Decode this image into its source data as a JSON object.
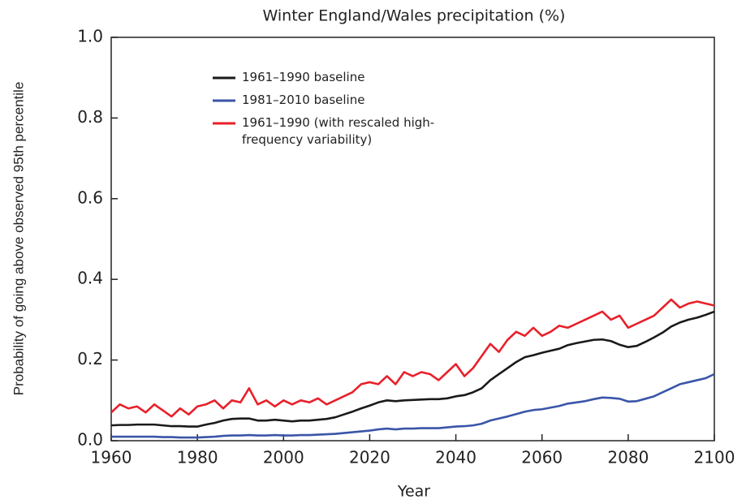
{
  "chart_data": {
    "type": "line",
    "title": "Winter England/Wales precipitation (%)",
    "xlabel": "Year",
    "ylabel": "Probability of going above observed 95th percentile",
    "x": [
      1960,
      1962,
      1964,
      1966,
      1968,
      1970,
      1972,
      1974,
      1976,
      1978,
      1980,
      1982,
      1984,
      1986,
      1988,
      1990,
      1992,
      1994,
      1996,
      1998,
      2000,
      2002,
      2004,
      2006,
      2008,
      2010,
      2012,
      2014,
      2016,
      2018,
      2020,
      2022,
      2024,
      2026,
      2028,
      2030,
      2032,
      2034,
      2036,
      2038,
      2040,
      2042,
      2044,
      2046,
      2048,
      2050,
      2052,
      2054,
      2056,
      2058,
      2060,
      2062,
      2064,
      2066,
      2068,
      2070,
      2072,
      2074,
      2076,
      2078,
      2080,
      2082,
      2084,
      2086,
      2088,
      2090,
      2092,
      2094,
      2096,
      2098,
      2100
    ],
    "series": [
      {
        "name": "1961–1990 baseline",
        "color": "#1a1a1a",
        "values": [
          0.038,
          0.039,
          0.039,
          0.04,
          0.04,
          0.04,
          0.038,
          0.036,
          0.036,
          0.035,
          0.035,
          0.04,
          0.044,
          0.05,
          0.054,
          0.055,
          0.055,
          0.05,
          0.05,
          0.052,
          0.05,
          0.048,
          0.05,
          0.05,
          0.052,
          0.054,
          0.058,
          0.065,
          0.072,
          0.08,
          0.087,
          0.095,
          0.1,
          0.098,
          0.1,
          0.101,
          0.102,
          0.103,
          0.103,
          0.105,
          0.11,
          0.113,
          0.12,
          0.13,
          0.15,
          0.165,
          0.18,
          0.195,
          0.207,
          0.212,
          0.218,
          0.223,
          0.228,
          0.237,
          0.242,
          0.246,
          0.25,
          0.251,
          0.247,
          0.238,
          0.232,
          0.235,
          0.245,
          0.256,
          0.268,
          0.283,
          0.293,
          0.3,
          0.305,
          0.312,
          0.32
        ]
      },
      {
        "name": "1981–2010 baseline",
        "color": "#3a55a8",
        "values": [
          0.01,
          0.01,
          0.01,
          0.01,
          0.01,
          0.01,
          0.009,
          0.009,
          0.008,
          0.008,
          0.008,
          0.009,
          0.01,
          0.012,
          0.013,
          0.013,
          0.014,
          0.013,
          0.013,
          0.014,
          0.013,
          0.013,
          0.014,
          0.014,
          0.015,
          0.016,
          0.017,
          0.019,
          0.021,
          0.023,
          0.025,
          0.028,
          0.03,
          0.028,
          0.03,
          0.03,
          0.031,
          0.031,
          0.031,
          0.033,
          0.035,
          0.036,
          0.038,
          0.042,
          0.05,
          0.055,
          0.06,
          0.066,
          0.072,
          0.076,
          0.078,
          0.082,
          0.086,
          0.092,
          0.095,
          0.098,
          0.103,
          0.107,
          0.106,
          0.104,
          0.097,
          0.098,
          0.104,
          0.11,
          0.12,
          0.13,
          0.14,
          0.145,
          0.15,
          0.155,
          0.165
        ]
      },
      {
        "name": "1961–1990 (with rescaled high-frequency variability)",
        "color": "#e8202a",
        "values": [
          0.07,
          0.09,
          0.08,
          0.085,
          0.07,
          0.09,
          0.075,
          0.06,
          0.08,
          0.065,
          0.085,
          0.09,
          0.1,
          0.08,
          0.1,
          0.095,
          0.13,
          0.09,
          0.1,
          0.085,
          0.1,
          0.09,
          0.1,
          0.095,
          0.105,
          0.09,
          0.1,
          0.11,
          0.12,
          0.14,
          0.145,
          0.14,
          0.16,
          0.14,
          0.17,
          0.16,
          0.17,
          0.165,
          0.15,
          0.17,
          0.19,
          0.16,
          0.18,
          0.21,
          0.24,
          0.22,
          0.25,
          0.27,
          0.26,
          0.28,
          0.26,
          0.27,
          0.285,
          0.28,
          0.29,
          0.3,
          0.31,
          0.32,
          0.3,
          0.31,
          0.28,
          0.29,
          0.3,
          0.31,
          0.33,
          0.35,
          0.33,
          0.34,
          0.345,
          0.34,
          0.335
        ]
      }
    ],
    "xlim": [
      1960,
      2100
    ],
    "xticks": [
      1960,
      1980,
      2000,
      2020,
      2040,
      2060,
      2080,
      2100
    ],
    "ylim": [
      0,
      1
    ],
    "yticks": [
      {
        "value": 0,
        "label": "0.0"
      },
      0.2,
      0.4,
      0.6,
      0.8,
      {
        "value": 1,
        "label": "1.0"
      }
    ],
    "legend": "upper left",
    "grid": false
  }
}
